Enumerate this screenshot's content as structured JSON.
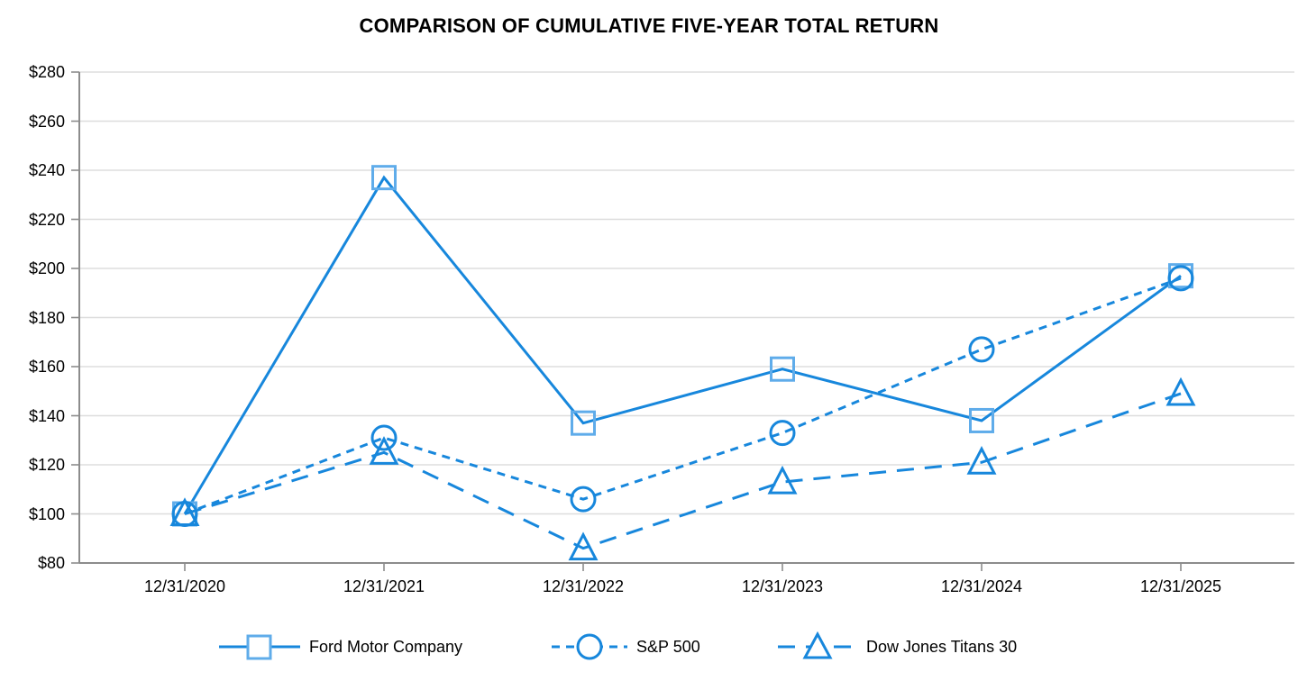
{
  "chart_data": {
    "type": "line",
    "title": "COMPARISON OF CUMULATIVE FIVE-YEAR TOTAL RETURN",
    "x_labels": [
      "12/31/2020",
      "12/31/2021",
      "12/31/2022",
      "12/31/2023",
      "12/31/2024",
      "12/31/2025"
    ],
    "y_tick_labels": [
      "$280",
      "$260",
      "$240",
      "$220",
      "$200",
      "$180",
      "$160",
      "$140",
      "$120",
      "$100",
      "$80"
    ],
    "ylim": [
      80,
      280
    ],
    "y_tick_step": 20,
    "grid": true,
    "legend_position": "bottom",
    "series": [
      {
        "name": "Ford Motor Company",
        "marker": "square",
        "line_style": "solid",
        "color": "#1787DC",
        "marker_color": "#5FACEA",
        "values": [
          100,
          237,
          137,
          159,
          138,
          197
        ]
      },
      {
        "name": "S&P 500",
        "marker": "circle",
        "line_style": "dashed",
        "color": "#1787DC",
        "marker_color": "#1787DC",
        "values": [
          100,
          131,
          106,
          133,
          167,
          196
        ]
      },
      {
        "name": "Dow Jones Titans 30",
        "marker": "triangle",
        "line_style": "long-dash",
        "color": "#1787DC",
        "marker_color": "#1787DC",
        "values": [
          100,
          125,
          86,
          113,
          121,
          149
        ]
      }
    ]
  },
  "colors": {
    "background": "#FFFFFF",
    "axis": "#8C8C8C",
    "grid": "#DDDDDD",
    "text": "#000000",
    "accent": "#1787DC"
  }
}
